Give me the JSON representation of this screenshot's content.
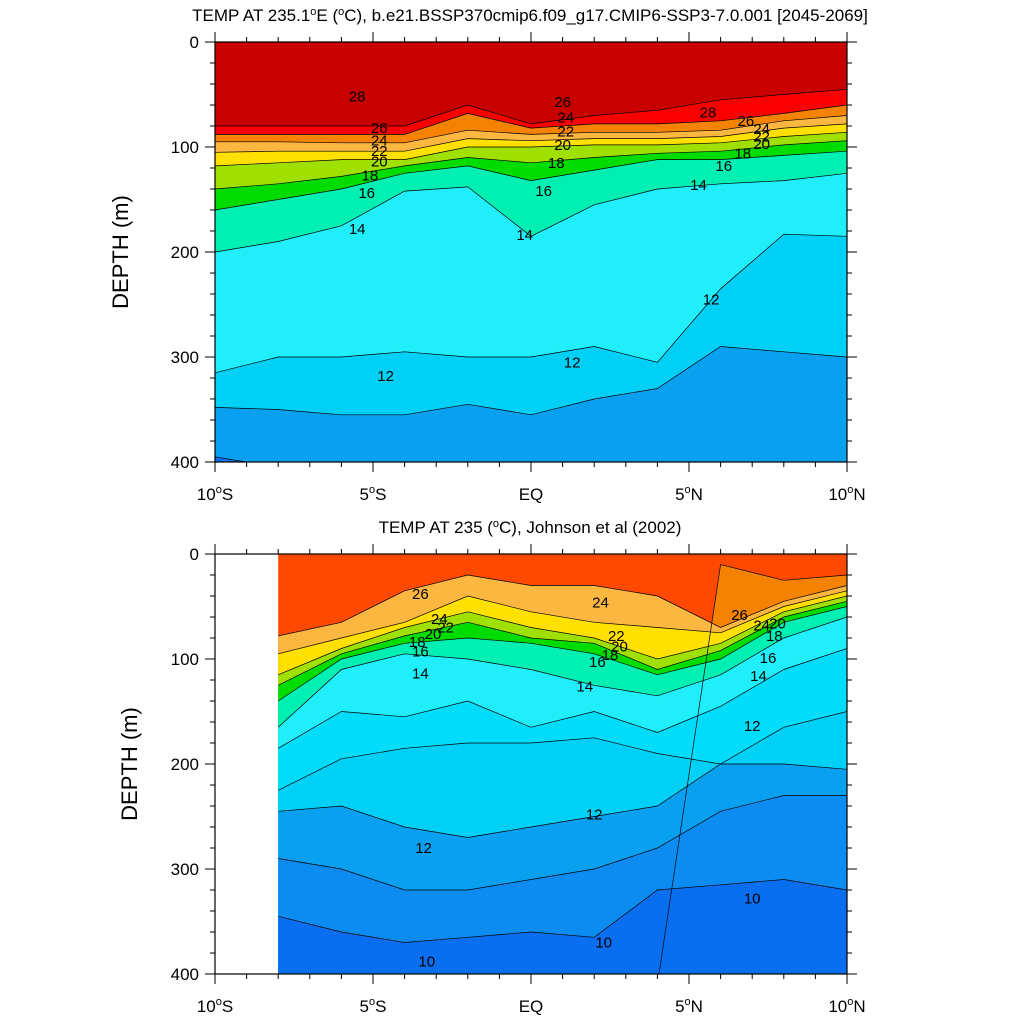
{
  "chart_data": [
    {
      "type": "contour",
      "title": "TEMP AT 235.1°E (°C), b.e21.BSSP370cmip6.f09_g17.CMIP6-SSP3-7.0.001 [2045-2069]",
      "title_parts": {
        "pre": "TEMP AT 235.1",
        "deg1": "o",
        "mid1": "E (",
        "deg2": "o",
        "post": "C), b.e21.BSSP370cmip6.f09_g17.CMIP6-SSP3-7.0.001 [2045-2069]"
      },
      "xlabel": "",
      "ylabel": "DEPTH (m)",
      "xlim": [
        -10,
        10
      ],
      "ylim": [
        400,
        0
      ],
      "data_x_range": [
        -10,
        10
      ],
      "x_ticks": [
        {
          "value": -10,
          "num": "10",
          "hemi": "S"
        },
        {
          "value": -5,
          "num": "5",
          "hemi": "S"
        },
        {
          "value": 0,
          "num": "",
          "hemi": "",
          "plain": "EQ"
        },
        {
          "value": 5,
          "num": "5",
          "hemi": "N"
        },
        {
          "value": 10,
          "num": "10",
          "hemi": "N"
        }
      ],
      "y_ticks": [
        0,
        100,
        200,
        300,
        400
      ],
      "x": [
        -10,
        -8,
        -6,
        -4,
        -2,
        0,
        2,
        4,
        6,
        8,
        10
      ],
      "isotherms": [
        {
          "level": 28,
          "depth": [
            80,
            80,
            80,
            80,
            60,
            78,
            70,
            65,
            55,
            50,
            45
          ]
        },
        {
          "level": 26,
          "depth": [
            88,
            88,
            88,
            88,
            68,
            82,
            78,
            78,
            75,
            68,
            60
          ]
        },
        {
          "level": 24,
          "depth": [
            95,
            95,
            96,
            96,
            84,
            88,
            86,
            86,
            84,
            75,
            70
          ]
        },
        {
          "level": 22,
          "depth": [
            105,
            104,
            104,
            104,
            92,
            94,
            92,
            92,
            90,
            82,
            78
          ]
        },
        {
          "level": 20,
          "depth": [
            118,
            115,
            112,
            112,
            100,
            100,
            98,
            98,
            96,
            90,
            86
          ]
        },
        {
          "level": 18,
          "depth": [
            140,
            135,
            128,
            118,
            110,
            115,
            110,
            106,
            104,
            98,
            94
          ]
        },
        {
          "level": 16,
          "depth": [
            160,
            150,
            140,
            125,
            118,
            132,
            122,
            112,
            112,
            108,
            104
          ]
        },
        {
          "level": 14,
          "depth": [
            200,
            190,
            175,
            142,
            138,
            185,
            155,
            140,
            135,
            132,
            125
          ]
        },
        {
          "level": 12,
          "depth": [
            315,
            300,
            300,
            295,
            300,
            300,
            290,
            305,
            235,
            183,
            185
          ]
        },
        {
          "level": 11,
          "depth": [
            348,
            350,
            355,
            355,
            345,
            355,
            340,
            330,
            290,
            295,
            300
          ]
        },
        {
          "level": 10,
          "depth": [
            395,
            405,
            410,
            410,
            410,
            410,
            410,
            410,
            410,
            410,
            410
          ]
        }
      ],
      "contour_labels": [
        {
          "text": "28",
          "x": -5.5,
          "y": 52
        },
        {
          "text": "26",
          "x": -4.8,
          "y": 82
        },
        {
          "text": "24",
          "x": -4.8,
          "y": 94
        },
        {
          "text": "22",
          "x": -4.8,
          "y": 104
        },
        {
          "text": "20",
          "x": -4.8,
          "y": 114
        },
        {
          "text": "18",
          "x": -5.1,
          "y": 127
        },
        {
          "text": "16",
          "x": -5.2,
          "y": 144
        },
        {
          "text": "14",
          "x": -5.5,
          "y": 178
        },
        {
          "text": "12",
          "x": -4.6,
          "y": 318
        },
        {
          "text": "26",
          "x": 1.0,
          "y": 57
        },
        {
          "text": "24",
          "x": 1.1,
          "y": 72
        },
        {
          "text": "22",
          "x": 1.1,
          "y": 85
        },
        {
          "text": "20",
          "x": 1.0,
          "y": 98
        },
        {
          "text": "18",
          "x": 0.8,
          "y": 115
        },
        {
          "text": "16",
          "x": 0.4,
          "y": 142
        },
        {
          "text": "14",
          "x": -0.2,
          "y": 184
        },
        {
          "text": "12",
          "x": 1.3,
          "y": 305
        },
        {
          "text": "28",
          "x": 5.6,
          "y": 67
        },
        {
          "text": "26",
          "x": 6.8,
          "y": 75
        },
        {
          "text": "24",
          "x": 7.3,
          "y": 83
        },
        {
          "text": "22",
          "x": 7.3,
          "y": 90
        },
        {
          "text": "20",
          "x": 7.3,
          "y": 97
        },
        {
          "text": "18",
          "x": 6.7,
          "y": 106
        },
        {
          "text": "16",
          "x": 6.1,
          "y": 118
        },
        {
          "text": "14",
          "x": 5.3,
          "y": 136
        },
        {
          "text": "12",
          "x": 5.7,
          "y": 245
        }
      ]
    },
    {
      "type": "contour",
      "title": "TEMP AT 235 (°C), Johnson et al (2002)",
      "title_parts": {
        "pre": "TEMP AT 235 (",
        "deg1": "o",
        "mid1": "C), Johnson et al (2002)",
        "deg2": "",
        "post": ""
      },
      "xlabel": "",
      "ylabel": "DEPTH (m)",
      "xlim": [
        -10,
        10
      ],
      "ylim": [
        400,
        0
      ],
      "data_x_range": [
        -8,
        10
      ],
      "x_ticks": [
        {
          "value": -10,
          "num": "10",
          "hemi": "S"
        },
        {
          "value": -5,
          "num": "5",
          "hemi": "S"
        },
        {
          "value": 0,
          "num": "",
          "hemi": "",
          "plain": "EQ"
        },
        {
          "value": 5,
          "num": "5",
          "hemi": "N"
        },
        {
          "value": 10,
          "num": "10",
          "hemi": "N"
        }
      ],
      "y_ticks": [
        0,
        100,
        200,
        300,
        400
      ],
      "x": [
        -8,
        -6,
        -4,
        -2,
        0,
        2,
        4,
        6,
        8,
        10
      ],
      "isotherms": [
        {
          "level": 26,
          "depth": [
            410,
            410,
            410,
            410,
            410,
            410,
            410,
            10,
            25,
            20
          ]
        },
        {
          "level": 24,
          "depth": [
            78,
            65,
            35,
            20,
            30,
            30,
            40,
            70,
            45,
            30
          ]
        },
        {
          "level": 22,
          "depth": [
            95,
            80,
            65,
            40,
            55,
            65,
            70,
            75,
            50,
            35
          ]
        },
        {
          "level": 20,
          "depth": [
            115,
            90,
            70,
            55,
            70,
            80,
            100,
            85,
            55,
            40
          ]
        },
        {
          "level": 18,
          "depth": [
            125,
            95,
            78,
            65,
            80,
            85,
            110,
            92,
            60,
            45
          ]
        },
        {
          "level": 16,
          "depth": [
            140,
            100,
            85,
            80,
            85,
            95,
            115,
            100,
            65,
            50
          ]
        },
        {
          "level": 14,
          "depth": [
            165,
            110,
            95,
            100,
            110,
            125,
            135,
            115,
            80,
            60
          ]
        },
        {
          "level": 13,
          "depth": [
            185,
            150,
            155,
            140,
            165,
            150,
            170,
            145,
            110,
            90
          ]
        },
        {
          "level": 12,
          "depth": [
            225,
            195,
            185,
            180,
            180,
            175,
            190,
            200,
            165,
            150
          ]
        },
        {
          "level": 11,
          "depth": [
            245,
            240,
            260,
            270,
            260,
            250,
            240,
            200,
            200,
            205
          ]
        },
        {
          "level": 10.5,
          "depth": [
            290,
            300,
            320,
            320,
            310,
            300,
            280,
            245,
            230,
            230
          ]
        },
        {
          "level": 10,
          "depth": [
            345,
            360,
            370,
            365,
            360,
            365,
            320,
            315,
            310,
            320
          ]
        }
      ],
      "contour_labels": [
        {
          "text": "26",
          "x": -3.5,
          "y": 38
        },
        {
          "text": "24",
          "x": -2.9,
          "y": 62
        },
        {
          "text": "22",
          "x": -2.7,
          "y": 70
        },
        {
          "text": "20",
          "x": -3.1,
          "y": 76
        },
        {
          "text": "18",
          "x": -3.6,
          "y": 84
        },
        {
          "text": "16",
          "x": -3.5,
          "y": 93
        },
        {
          "text": "14",
          "x": -3.5,
          "y": 114
        },
        {
          "text": "12",
          "x": -3.4,
          "y": 280
        },
        {
          "text": "10",
          "x": -3.3,
          "y": 388
        },
        {
          "text": "24",
          "x": 2.2,
          "y": 46
        },
        {
          "text": "22",
          "x": 2.7,
          "y": 78
        },
        {
          "text": "20",
          "x": 2.8,
          "y": 88
        },
        {
          "text": "18",
          "x": 2.5,
          "y": 96
        },
        {
          "text": "16",
          "x": 2.1,
          "y": 103
        },
        {
          "text": "14",
          "x": 1.7,
          "y": 126
        },
        {
          "text": "12",
          "x": 2.0,
          "y": 248
        },
        {
          "text": "10",
          "x": 2.3,
          "y": 370
        },
        {
          "text": "26",
          "x": 6.6,
          "y": 58
        },
        {
          "text": "24",
          "x": 7.3,
          "y": 68
        },
        {
          "text": "20",
          "x": 7.8,
          "y": 66
        },
        {
          "text": "18",
          "x": 7.7,
          "y": 78
        },
        {
          "text": "16",
          "x": 7.5,
          "y": 99
        },
        {
          "text": "14",
          "x": 7.2,
          "y": 116
        },
        {
          "text": "12",
          "x": 7.0,
          "y": 164
        },
        {
          "text": "10",
          "x": 7.0,
          "y": 328
        }
      ]
    }
  ],
  "color_levels": [
    {
      "level": 29,
      "color": "#c80000"
    },
    {
      "level": 28,
      "color": "#fa0000"
    },
    {
      "level": 27,
      "color": "#ff4800"
    },
    {
      "level": 26,
      "color": "#f58200"
    },
    {
      "level": 25,
      "color": "#f9a030"
    },
    {
      "level": 24,
      "color": "#fcb740"
    },
    {
      "level": 23,
      "color": "#ffd04a"
    },
    {
      "level": 22,
      "color": "#ffe000"
    },
    {
      "level": 21,
      "color": "#f0f000"
    },
    {
      "level": 20,
      "color": "#a0e000"
    },
    {
      "level": 19,
      "color": "#50d800"
    },
    {
      "level": 18,
      "color": "#00dc00"
    },
    {
      "level": 17,
      "color": "#00e66e"
    },
    {
      "level": 16,
      "color": "#00f0b4"
    },
    {
      "level": 15,
      "color": "#00f5e0"
    },
    {
      "level": 14,
      "color": "#20eefa"
    },
    {
      "level": 13,
      "color": "#00dcfa"
    },
    {
      "level": 12,
      "color": "#00d0f5"
    },
    {
      "level": 11.5,
      "color": "#00b8f5"
    },
    {
      "level": 11,
      "color": "#0aa0f0"
    },
    {
      "level": 10.5,
      "color": "#0c8cf0"
    },
    {
      "level": 10,
      "color": "#0a6ef0"
    },
    {
      "level": 9,
      "color": "#1450e6"
    }
  ]
}
